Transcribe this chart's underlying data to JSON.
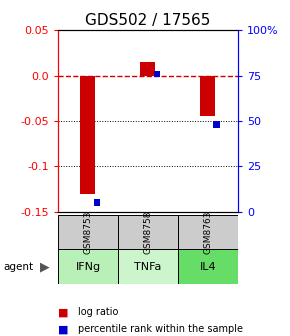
{
  "title": "GDS502 / 17565",
  "samples": [
    "GSM8753",
    "GSM8758",
    "GSM8763"
  ],
  "agents": [
    "IFNg",
    "TNFa",
    "IL4"
  ],
  "log_ratios": [
    -0.13,
    0.015,
    -0.045
  ],
  "percentile_ranks": [
    5,
    76,
    48
  ],
  "ylim_left": [
    -0.15,
    0.05
  ],
  "ylim_right": [
    0,
    100
  ],
  "left_ticks": [
    0.05,
    0.0,
    -0.05,
    -0.1,
    -0.15
  ],
  "right_ticks": [
    100,
    75,
    50,
    25,
    0
  ],
  "right_tick_labels": [
    "100%",
    "75",
    "50",
    "25",
    "0"
  ],
  "bar_color": "#cc0000",
  "pct_color": "#0000cc",
  "zero_line_color": "#cc0000",
  "grid_color": "#000000",
  "agent_colors": [
    "#b8f0b8",
    "#ccf5cc",
    "#66dd66"
  ],
  "sample_bg": "#cccccc",
  "title_fontsize": 11,
  "tick_fontsize": 8,
  "bar_width": 0.25,
  "pct_square_size": 0.007
}
